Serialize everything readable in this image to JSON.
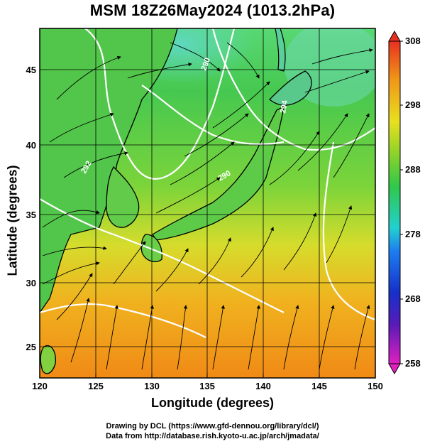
{
  "title": "MSM 18Z26May2024 (1013.2hPa)",
  "map": {
    "lon_range": [
      120,
      150
    ],
    "lat_range": [
      22.6,
      47.7
    ],
    "x_ticks": [
      120,
      125,
      130,
      135,
      140,
      145,
      150
    ],
    "y_ticks": [
      25,
      30,
      35,
      40,
      45
    ],
    "x_label": "Longitude (degrees)",
    "y_label": "Latitude  (degrees)"
  },
  "colorbar": {
    "min": 258,
    "max": 308,
    "tick_values": [
      258,
      268,
      278,
      288,
      298,
      308
    ],
    "tick_labels": [
      "258",
      "268",
      "278",
      "288",
      "298",
      "308"
    ]
  },
  "footer": {
    "line1": "Drawing by DCL (https://www.gfd-dennou.org/library/dcl/)",
    "line2": "Data from http://database.rish.kyoto-u.ac.jp/arch/jmadata/"
  },
  "contour_labels": [
    "290",
    "292",
    "290",
    "294"
  ]
}
